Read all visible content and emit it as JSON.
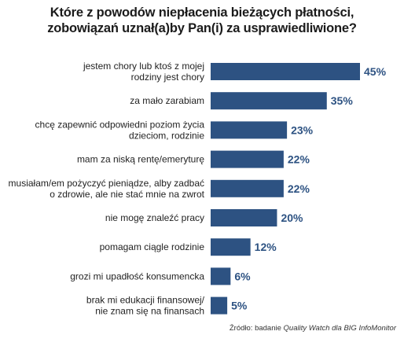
{
  "chart_data": {
    "type": "bar",
    "orientation": "horizontal",
    "title_lines": [
      "Które z powodów niepłacenia bieżących płatności,",
      "zobowiązań uznał(a)by Pan(i) za usprawiedliwione?"
    ],
    "categories": [
      [
        "jestem chory lub ktoś z mojej",
        "rodziny jest chory"
      ],
      [
        "za mało zarabiam"
      ],
      [
        "chcę zapewnić odpowiedni poziom życia",
        "dzieciom, rodzinie"
      ],
      [
        "mam za niską rentę/emeryturę"
      ],
      [
        "musiałam/em pożyczyć pieniądze, alby zadbać",
        "o zdrowie, ale nie stać mnie na zwrot"
      ],
      [
        "nie mogę znaleźć pracy"
      ],
      [
        "pomagam ciągle rodzinie"
      ],
      [
        "grozi mi upadłość konsumencka"
      ],
      [
        "brak mi edukacji finansowej/",
        "nie znam się na finansach"
      ]
    ],
    "values": [
      45,
      35,
      23,
      22,
      22,
      20,
      12,
      6,
      5
    ],
    "value_labels": [
      "45%",
      "35%",
      "23%",
      "22%",
      "22%",
      "20%",
      "12%",
      "6%",
      "5%"
    ],
    "bar_color": "#2d5282",
    "label_color": "#2d5282",
    "grid": false,
    "legend": "none"
  },
  "source": {
    "prefix": "Źródło: badanie ",
    "italic": "Quality Watch dla BIG InfoMonitor"
  }
}
